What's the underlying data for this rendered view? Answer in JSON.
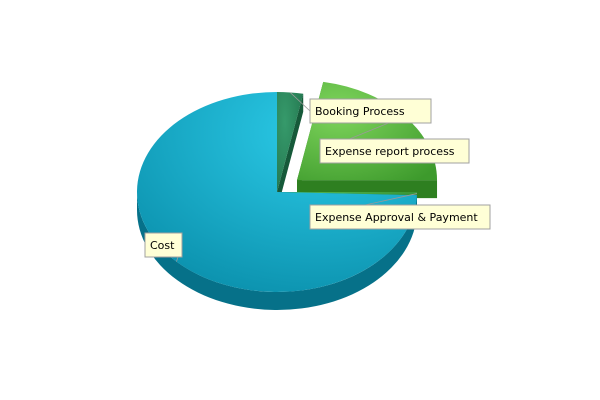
{
  "chart_data": {
    "type": "pie",
    "style": "3d-exploded",
    "title": "",
    "categories": [
      "Booking Process",
      "Expense report process",
      "Expense Approval & Payment",
      "Cost"
    ],
    "values": [
      3,
      22,
      0.5,
      74.5
    ],
    "unit": "percent",
    "colors": {
      "Booking Process": "#2c8a5c",
      "Expense report process": "#6cc24a",
      "Expense Approval & Payment": "#3f9e3f",
      "Cost": "#1ab0d3"
    },
    "exploded": [
      "Expense report process"
    ],
    "legend": "none",
    "data_labels": "callout-boxes",
    "label_box_color": "#ffffd6"
  }
}
